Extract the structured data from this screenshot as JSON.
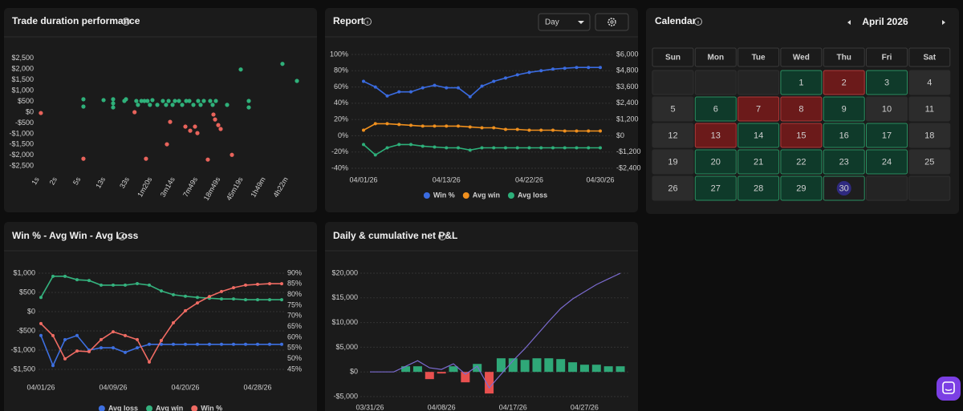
{
  "chart_data": [
    {
      "type": "scatter",
      "title": "Trade duration performance",
      "xscale": "log",
      "grid": false,
      "xlim": [
        0.94,
        37500
      ],
      "xticks": [
        {
          "value": 1,
          "label": "1s"
        },
        {
          "value": 2,
          "label": "2s"
        },
        {
          "value": 5,
          "label": "5s"
        },
        {
          "value": 13,
          "label": "13s"
        },
        {
          "value": 33,
          "label": "33s"
        },
        {
          "value": 80,
          "label": "1m20s"
        },
        {
          "value": 194,
          "label": "3m14s"
        },
        {
          "value": 469,
          "label": "7m49s"
        },
        {
          "value": 1129,
          "label": "18m49s"
        },
        {
          "value": 2719,
          "label": "45m19s"
        },
        {
          "value": 6540,
          "label": "1h49m"
        },
        {
          "value": 15720,
          "label": "4h22m"
        }
      ],
      "ylim": [
        -2750,
        2750
      ],
      "yticks": [
        {
          "value": 2500,
          "label": "$2,500"
        },
        {
          "value": 2000,
          "label": "$2,000"
        },
        {
          "value": 1500,
          "label": "$1,500"
        },
        {
          "value": 1000,
          "label": "$1,000"
        },
        {
          "value": 500,
          "label": "$500"
        },
        {
          "value": 0,
          "label": "$0"
        },
        {
          "value": -500,
          "label": "-$500"
        },
        {
          "value": -1000,
          "label": "-$1,000"
        },
        {
          "value": -1500,
          "label": "-$1,500"
        },
        {
          "value": -2000,
          "label": "-$2,000"
        },
        {
          "value": -2500,
          "label": "-$2,500"
        }
      ],
      "series": [
        {
          "color": "#2fb07a",
          "x": [
            5.9,
            5.9,
            12.9,
            18.7,
            18.7,
            18.7,
            28.9,
            30.8,
            46,
            49,
            56,
            63,
            71,
            78,
            86,
            104,
            129,
            146,
            161,
            188,
            206,
            241,
            273,
            319,
            361,
            422,
            508,
            558,
            632,
            811,
            891,
            1009,
            1562,
            3623,
            3623,
            2654,
            13400,
            23500
          ],
          "values": [
            600,
            260,
            560,
            600,
            410,
            220,
            520,
            600,
            520,
            340,
            520,
            520,
            520,
            340,
            560,
            340,
            520,
            340,
            520,
            340,
            520,
            520,
            340,
            520,
            520,
            340,
            520,
            340,
            520,
            520,
            340,
            520,
            340,
            520,
            220,
            1980,
            2240,
            1450
          ]
        },
        {
          "color": "#e8635b",
          "x": [
            1.13,
            5.9,
            43,
            67,
            151,
            171,
            309,
            373,
            449,
            493,
            739,
            919,
            979,
            1109,
            1217,
            1884
          ],
          "values": [
            -40,
            -2160,
            0,
            -2160,
            -1490,
            -450,
            -670,
            -860,
            -670,
            -970,
            -2200,
            -110,
            -340,
            -600,
            -780,
            -1980
          ]
        }
      ]
    },
    {
      "type": "line",
      "title": "Report",
      "grid": true,
      "legend": "bottom",
      "categories": [
        "04/01/26",
        null,
        null,
        null,
        null,
        null,
        null,
        "04/13/26",
        null,
        null,
        null,
        null,
        null,
        null,
        "04/22/26",
        null,
        null,
        null,
        null,
        null,
        "04/30/26"
      ],
      "ylim": [
        -40,
        100
      ],
      "yticks": [
        {
          "value": 100,
          "label": "100%"
        },
        {
          "value": 80,
          "label": "80%"
        },
        {
          "value": 60,
          "label": "60%"
        },
        {
          "value": 40,
          "label": "40%"
        },
        {
          "value": 20,
          "label": "20%"
        },
        {
          "value": 0,
          "label": "0%"
        },
        {
          "value": -20,
          "label": "-20%"
        },
        {
          "value": -40,
          "label": "-40%"
        }
      ],
      "y2lim": [
        -2400,
        6000
      ],
      "y2ticks": [
        {
          "value": 6000,
          "label": "$6,000"
        },
        {
          "value": 4800,
          "label": "$4,800"
        },
        {
          "value": 3600,
          "label": "$3,600"
        },
        {
          "value": 2400,
          "label": "$2,400"
        },
        {
          "value": 1200,
          "label": "$1,200"
        },
        {
          "value": 0,
          "label": "$0"
        },
        {
          "value": -1200,
          "label": "-$1,200"
        },
        {
          "value": -2400,
          "label": "-$2,400"
        }
      ],
      "series": [
        {
          "name": "Win %",
          "color": "#3a6be0",
          "values": [
            67,
            60,
            49,
            54,
            54,
            59,
            62,
            59,
            59,
            48,
            61,
            67,
            71,
            75,
            78,
            80,
            82,
            83,
            84,
            84,
            84
          ]
        },
        {
          "name": "Avg win",
          "color": "#f0901e",
          "axis": "y2",
          "values": [
            410,
            890,
            890,
            830,
            770,
            710,
            710,
            710,
            710,
            650,
            590,
            590,
            470,
            470,
            410,
            410,
            410,
            350,
            350,
            350,
            350
          ]
        },
        {
          "name": "Avg loss",
          "color": "#2db07a",
          "axis": "y2",
          "values": [
            -650,
            -1420,
            -890,
            -650,
            -650,
            -770,
            -830,
            -890,
            -890,
            -1060,
            -890,
            -890,
            -890,
            -890,
            -890,
            -890,
            -890,
            -890,
            -890,
            -890,
            -890
          ]
        }
      ]
    },
    {
      "type": "line",
      "title": "Win % - Avg Win - Avg Loss",
      "grid": true,
      "legend": "bottom",
      "categories": [
        "04/01/26",
        null,
        null,
        null,
        null,
        null,
        "04/09/26",
        null,
        null,
        null,
        null,
        null,
        "04/20/26",
        null,
        null,
        null,
        null,
        null,
        "04/28/26",
        null,
        null
      ],
      "ylim": [
        -1500,
        1000
      ],
      "yticks": [
        {
          "value": 1000,
          "label": "$1,000"
        },
        {
          "value": 500,
          "label": "$500"
        },
        {
          "value": 0,
          "label": "$0"
        },
        {
          "value": -500,
          "label": "-$500"
        },
        {
          "value": -1000,
          "label": "-$1,000"
        },
        {
          "value": -1500,
          "label": "-$1,500"
        }
      ],
      "y2lim": [
        45,
        90
      ],
      "y2ticks": [
        {
          "value": 90,
          "label": "90%"
        },
        {
          "value": 85,
          "label": "85%"
        },
        {
          "value": 80,
          "label": "80%"
        },
        {
          "value": 75,
          "label": "75%"
        },
        {
          "value": 70,
          "label": "70%"
        },
        {
          "value": 65,
          "label": "65%"
        },
        {
          "value": 60,
          "label": "60%"
        },
        {
          "value": 55,
          "label": "55%"
        },
        {
          "value": 50,
          "label": "50%"
        },
        {
          "value": 45,
          "label": "45%"
        }
      ],
      "series": [
        {
          "name": "Avg loss",
          "color": "#3d6fe0",
          "values": [
            -620,
            -1400,
            -730,
            -620,
            -1000,
            -940,
            -940,
            -1060,
            -940,
            -850,
            -850,
            -850,
            -850,
            -850,
            -850,
            -850,
            -850,
            -850,
            -850,
            -850,
            -850
          ]
        },
        {
          "name": "Avg win",
          "color": "#34b27e",
          "values": [
            370,
            920,
            920,
            830,
            810,
            690,
            690,
            690,
            730,
            690,
            540,
            440,
            400,
            370,
            350,
            330,
            330,
            310,
            310,
            310,
            310
          ]
        },
        {
          "name": "Win %",
          "color": "#ef6b63",
          "axis": "y2",
          "values": [
            66.4,
            60.8,
            49.9,
            53.6,
            53.3,
            58.9,
            62.6,
            60.8,
            58.9,
            48.4,
            58.5,
            66.8,
            72.4,
            76.1,
            79.1,
            81.4,
            83.2,
            84.4,
            84.8,
            85.1,
            85.1
          ]
        }
      ]
    },
    {
      "type": "combo",
      "title": "Daily & cumulative net P&L",
      "grid": true,
      "categories": [
        "03/31/26",
        null,
        null,
        null,
        null,
        null,
        "04/08/26",
        null,
        null,
        null,
        null,
        null,
        "04/17/26",
        null,
        null,
        null,
        null,
        null,
        "04/27/26",
        null,
        null,
        null
      ],
      "ylim": [
        -5000,
        20000
      ],
      "yticks": [
        {
          "value": 20000,
          "label": "$20,000"
        },
        {
          "value": 15000,
          "label": "$15,000"
        },
        {
          "value": 10000,
          "label": "$10,000"
        },
        {
          "value": 5000,
          "label": "$5,000"
        },
        {
          "value": 0,
          "label": "$0"
        },
        {
          "value": -5000,
          "label": "-$5,000"
        }
      ],
      "series": [
        {
          "type": "bar",
          "positive_color": "#2fa878",
          "negative_color": "#e8504f",
          "values": [
            0,
            0,
            0,
            1140,
            1140,
            -1460,
            -320,
            1140,
            -2110,
            1620,
            -4380,
            2760,
            2760,
            2430,
            2760,
            2760,
            2600,
            1950,
            1460,
            1460,
            1140,
            1140
          ]
        },
        {
          "type": "line",
          "color": "#7b6bd0",
          "values": [
            0,
            0,
            0,
            1140,
            2280,
            820,
            500,
            1640,
            -470,
            1150,
            -3230,
            -470,
            2290,
            4720,
            7480,
            10240,
            12840,
            14790,
            16250,
            17710,
            18850,
            19990
          ]
        }
      ]
    }
  ],
  "report_controls": {
    "period": "Day"
  },
  "calendar": {
    "title": "Calendar",
    "month": "April 2026",
    "weekdays": [
      "Sun",
      "Mon",
      "Tue",
      "Wed",
      "Thu",
      "Fri",
      "Sat"
    ],
    "colors": {
      "win": [
        "#0f3a2a",
        "#2a8f60"
      ],
      "loss": [
        "#6b1a1a",
        "#b03a3a"
      ],
      "none": [
        "#2c2c2c",
        "#2c2c2c"
      ]
    },
    "weeks": [
      [
        null,
        null,
        null,
        {
          "day": 1,
          "result": "win"
        },
        {
          "day": 2,
          "result": "loss"
        },
        {
          "day": 3,
          "result": "win"
        },
        {
          "day": 4,
          "result": "none"
        }
      ],
      [
        {
          "day": 5,
          "result": "none"
        },
        {
          "day": 6,
          "result": "win"
        },
        {
          "day": 7,
          "result": "loss"
        },
        {
          "day": 8,
          "result": "loss"
        },
        {
          "day": 9,
          "result": "win"
        },
        {
          "day": 10,
          "result": "none"
        },
        {
          "day": 11,
          "result": "none"
        }
      ],
      [
        {
          "day": 12,
          "result": "none"
        },
        {
          "day": 13,
          "result": "loss"
        },
        {
          "day": 14,
          "result": "win"
        },
        {
          "day": 15,
          "result": "loss"
        },
        {
          "day": 16,
          "result": "win"
        },
        {
          "day": 17,
          "result": "win"
        },
        {
          "day": 18,
          "result": "none"
        }
      ],
      [
        {
          "day": 19,
          "result": "none"
        },
        {
          "day": 20,
          "result": "win"
        },
        {
          "day": 21,
          "result": "win"
        },
        {
          "day": 22,
          "result": "win"
        },
        {
          "day": 23,
          "result": "win"
        },
        {
          "day": 24,
          "result": "win"
        },
        {
          "day": 25,
          "result": "none"
        }
      ],
      [
        {
          "day": 26,
          "result": "none"
        },
        {
          "day": 27,
          "result": "win"
        },
        {
          "day": 28,
          "result": "win"
        },
        {
          "day": 29,
          "result": "win"
        },
        {
          "day": 30,
          "result": "win",
          "selected": true
        },
        null,
        null
      ]
    ]
  }
}
